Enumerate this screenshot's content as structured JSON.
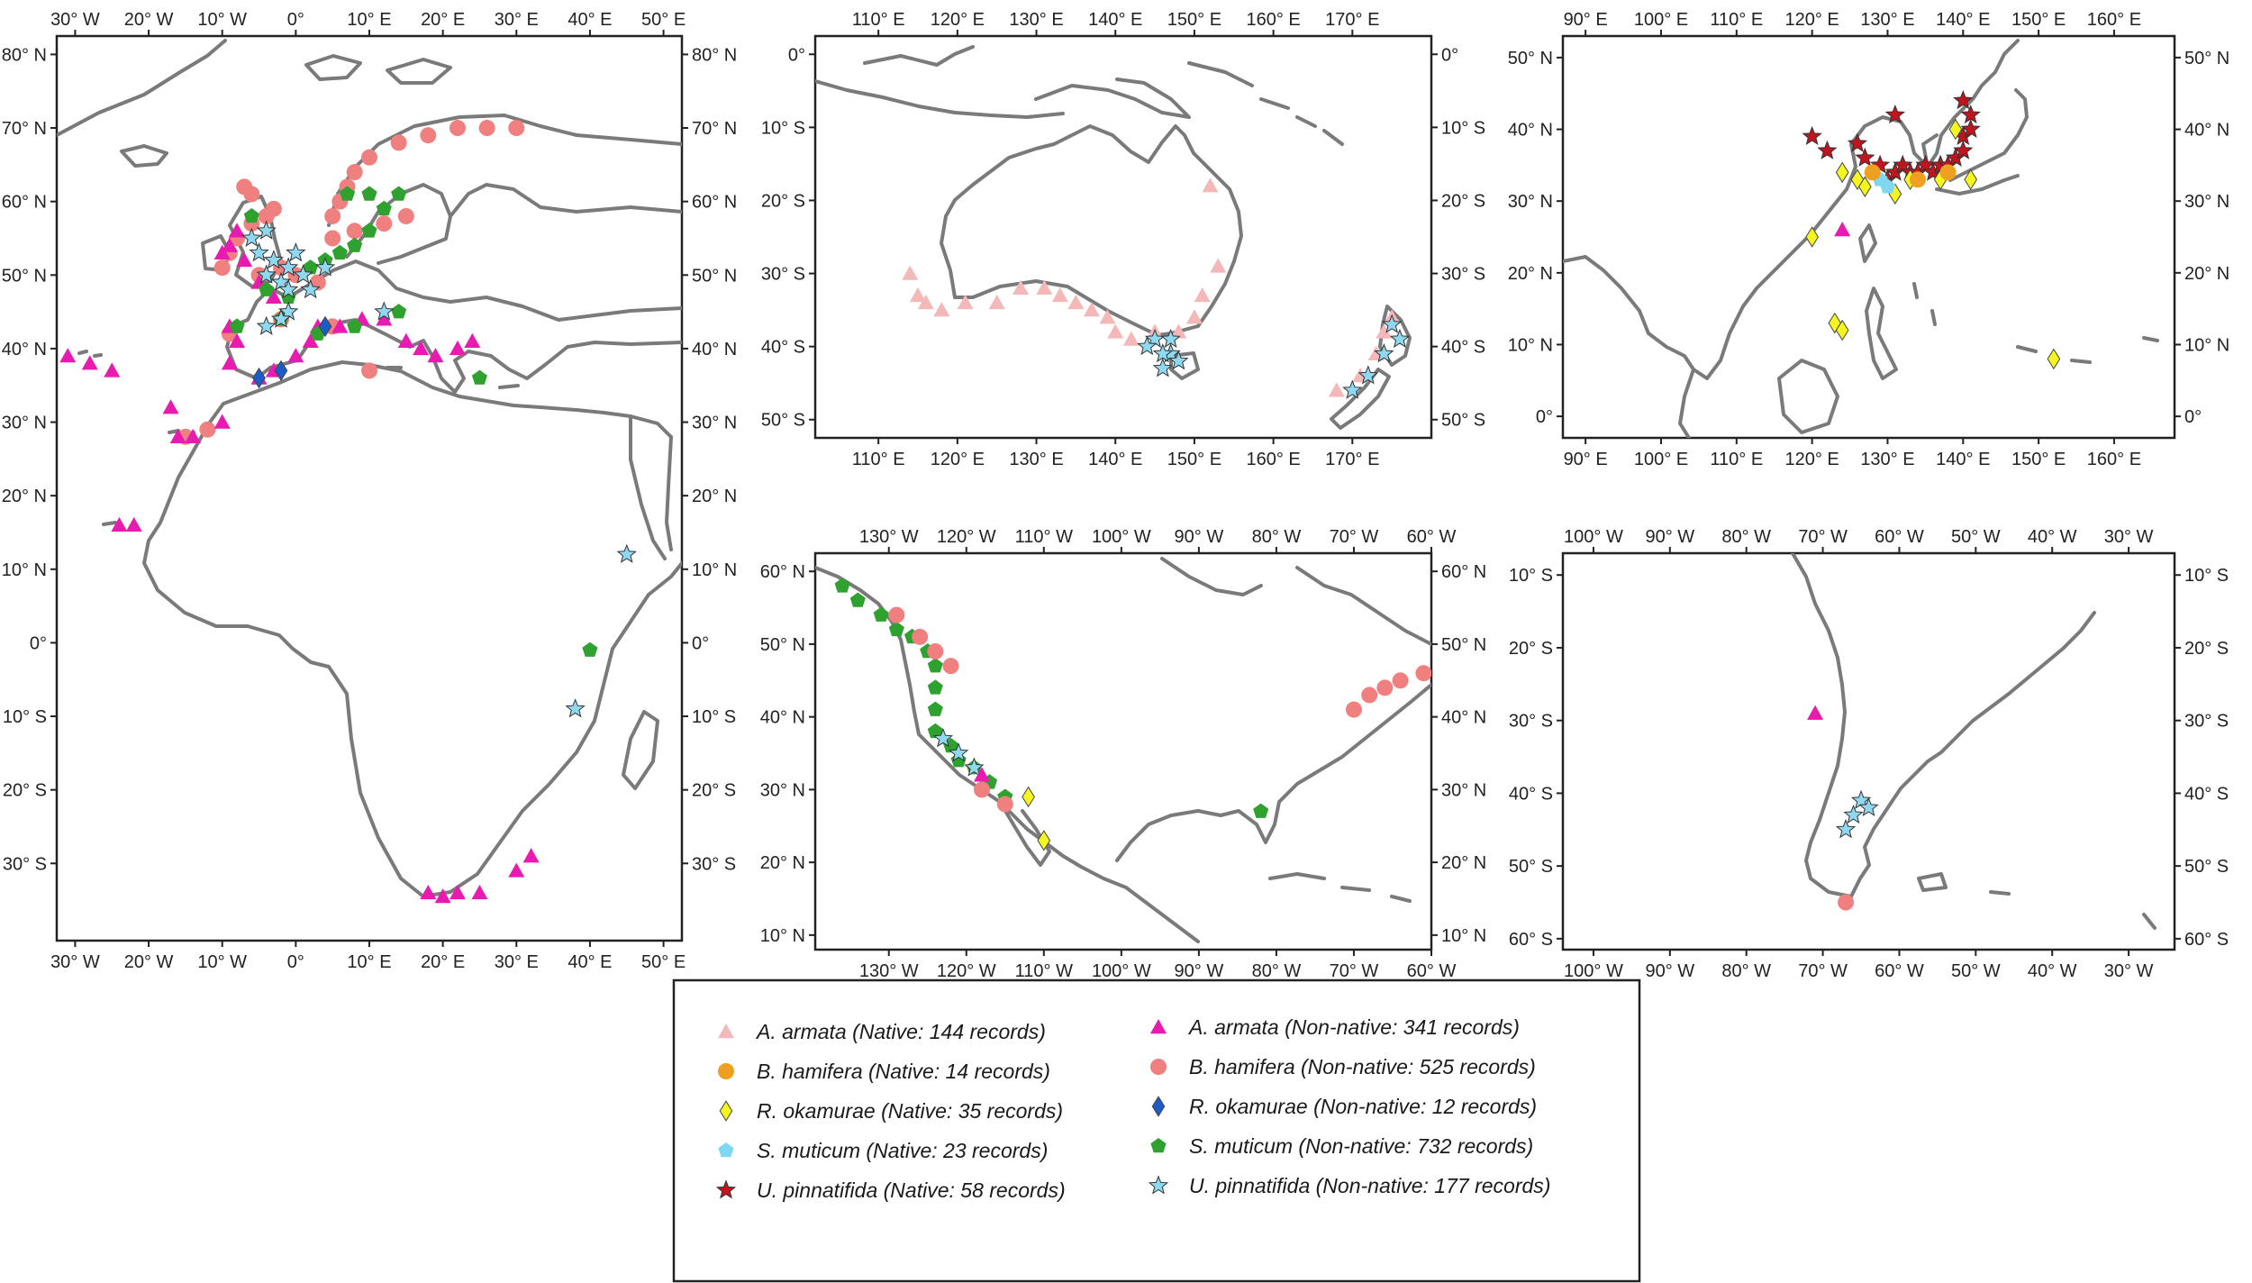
{
  "maps": [
    {
      "id": "europe-africa",
      "lon_ticks": [
        {
          "v": -30,
          "label": "30° W"
        },
        {
          "v": -20,
          "label": "20° W"
        },
        {
          "v": -10,
          "label": "10° W"
        },
        {
          "v": 0,
          "label": "0°"
        },
        {
          "v": 10,
          "label": "10° E"
        },
        {
          "v": 20,
          "label": "20° E"
        },
        {
          "v": 30,
          "label": "30° E"
        },
        {
          "v": 40,
          "label": "40° E"
        },
        {
          "v": 50,
          "label": "50° E"
        }
      ],
      "lat_ticks": [
        {
          "v": 80,
          "label": "80° N"
        },
        {
          "v": 70,
          "label": "70° N"
        },
        {
          "v": 60,
          "label": "60° N"
        },
        {
          "v": 50,
          "label": "50° N"
        },
        {
          "v": 40,
          "label": "40° N"
        },
        {
          "v": 30,
          "label": "30° N"
        },
        {
          "v": 20,
          "label": "20° N"
        },
        {
          "v": 10,
          "label": "10° N"
        },
        {
          "v": 0,
          "label": "0°"
        },
        {
          "v": -10,
          "label": "10° S"
        },
        {
          "v": -20,
          "label": "20° S"
        },
        {
          "v": -30,
          "label": "30° S"
        }
      ]
    },
    {
      "id": "australia-nz",
      "lon_ticks": [
        {
          "v": 110,
          "label": "110° E"
        },
        {
          "v": 120,
          "label": "120° E"
        },
        {
          "v": 130,
          "label": "130° E"
        },
        {
          "v": 140,
          "label": "140° E"
        },
        {
          "v": 150,
          "label": "150° E"
        },
        {
          "v": 160,
          "label": "160° E"
        },
        {
          "v": 170,
          "label": "170° E"
        }
      ],
      "lat_ticks": [
        {
          "v": 0,
          "label": "0°"
        },
        {
          "v": -10,
          "label": "10° S"
        },
        {
          "v": -20,
          "label": "20° S"
        },
        {
          "v": -30,
          "label": "30° S"
        },
        {
          "v": -40,
          "label": "40° S"
        },
        {
          "v": -50,
          "label": "50° S"
        }
      ]
    },
    {
      "id": "east-asia",
      "lon_ticks": [
        {
          "v": 90,
          "label": "90° E"
        },
        {
          "v": 100,
          "label": "100° E"
        },
        {
          "v": 110,
          "label": "110° E"
        },
        {
          "v": 120,
          "label": "120° E"
        },
        {
          "v": 130,
          "label": "130° E"
        },
        {
          "v": 140,
          "label": "140° E"
        },
        {
          "v": 150,
          "label": "150° E"
        },
        {
          "v": 160,
          "label": "160° E"
        }
      ],
      "lat_ticks": [
        {
          "v": 50,
          "label": "50° N"
        },
        {
          "v": 40,
          "label": "40° N"
        },
        {
          "v": 30,
          "label": "30° N"
        },
        {
          "v": 20,
          "label": "20° N"
        },
        {
          "v": 10,
          "label": "10° N"
        },
        {
          "v": 0,
          "label": "0°"
        }
      ]
    },
    {
      "id": "north-america",
      "lon_ticks": [
        {
          "v": -130,
          "label": "130° W"
        },
        {
          "v": -120,
          "label": "120° W"
        },
        {
          "v": -110,
          "label": "110° W"
        },
        {
          "v": -100,
          "label": "100° W"
        },
        {
          "v": -90,
          "label": "90° W"
        },
        {
          "v": -80,
          "label": "80° W"
        },
        {
          "v": -70,
          "label": "70° W"
        },
        {
          "v": -60,
          "label": "60° W"
        }
      ],
      "lat_ticks": [
        {
          "v": 60,
          "label": "60° N"
        },
        {
          "v": 50,
          "label": "50° N"
        },
        {
          "v": 40,
          "label": "40° N"
        },
        {
          "v": 30,
          "label": "30° N"
        },
        {
          "v": 20,
          "label": "20° N"
        },
        {
          "v": 10,
          "label": "10° N"
        }
      ]
    },
    {
      "id": "south-america",
      "lon_ticks": [
        {
          "v": -100,
          "label": "100° W"
        },
        {
          "v": -90,
          "label": "90° W"
        },
        {
          "v": -80,
          "label": "80° W"
        },
        {
          "v": -70,
          "label": "70° W"
        },
        {
          "v": -60,
          "label": "60° W"
        },
        {
          "v": -50,
          "label": "50° W"
        },
        {
          "v": -40,
          "label": "40° W"
        },
        {
          "v": -30,
          "label": "30° W"
        }
      ],
      "lat_ticks": [
        {
          "v": -10,
          "label": "10° S"
        },
        {
          "v": -20,
          "label": "20° S"
        },
        {
          "v": -30,
          "label": "30° S"
        },
        {
          "v": -40,
          "label": "40° S"
        },
        {
          "v": -50,
          "label": "50° S"
        },
        {
          "v": -60,
          "label": "60° S"
        }
      ]
    }
  ],
  "legend": {
    "left": [
      {
        "species": "A. armata",
        "status": "(Native: 144 records)",
        "marker": "triangle",
        "color": "#f4b8b8"
      },
      {
        "species": "B. hamifera",
        "status": "(Native: 14 records)",
        "marker": "circle",
        "color": "#f0a020"
      },
      {
        "species": "R. okamurae",
        "status": "(Native: 35 records)",
        "marker": "diamond",
        "color": "#f5f520"
      },
      {
        "species": "S. muticum",
        "status": "(Native: 23 records)",
        "marker": "pentagon",
        "color": "#7fd8f0"
      },
      {
        "species": "U. pinnatifida",
        "status": "(Native: 58 records)",
        "marker": "star",
        "color": "#c0141e"
      }
    ],
    "right": [
      {
        "species": "A. armata",
        "status": "(Non-native: 341 records)",
        "marker": "triangle",
        "color": "#e81ab0"
      },
      {
        "species": "B. hamifera",
        "status": "(Non-native: 525 records)",
        "marker": "circle",
        "color": "#f08080"
      },
      {
        "species": "R. okamurae",
        "status": "(Non-native: 12 records)",
        "marker": "diamond",
        "color": "#1c5cc8"
      },
      {
        "species": "S. muticum",
        "status": "(Non-native: 732 records)",
        "marker": "pentagon",
        "color": "#2fa12f"
      },
      {
        "species": "U. pinnatifida",
        "status": "(Non-native: 177 records)",
        "marker": "star",
        "color": "#8fd8f0"
      }
    ]
  }
}
